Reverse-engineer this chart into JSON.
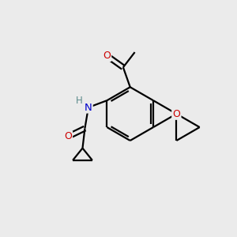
{
  "bg_color": "#ebebeb",
  "bond_color": "#000000",
  "bond_width": 1.6,
  "atom_colors": {
    "O": "#cc0000",
    "N": "#0000cc",
    "H": "#5a8a8a",
    "C": "#000000"
  },
  "figsize": [
    3.0,
    3.0
  ],
  "dpi": 100
}
